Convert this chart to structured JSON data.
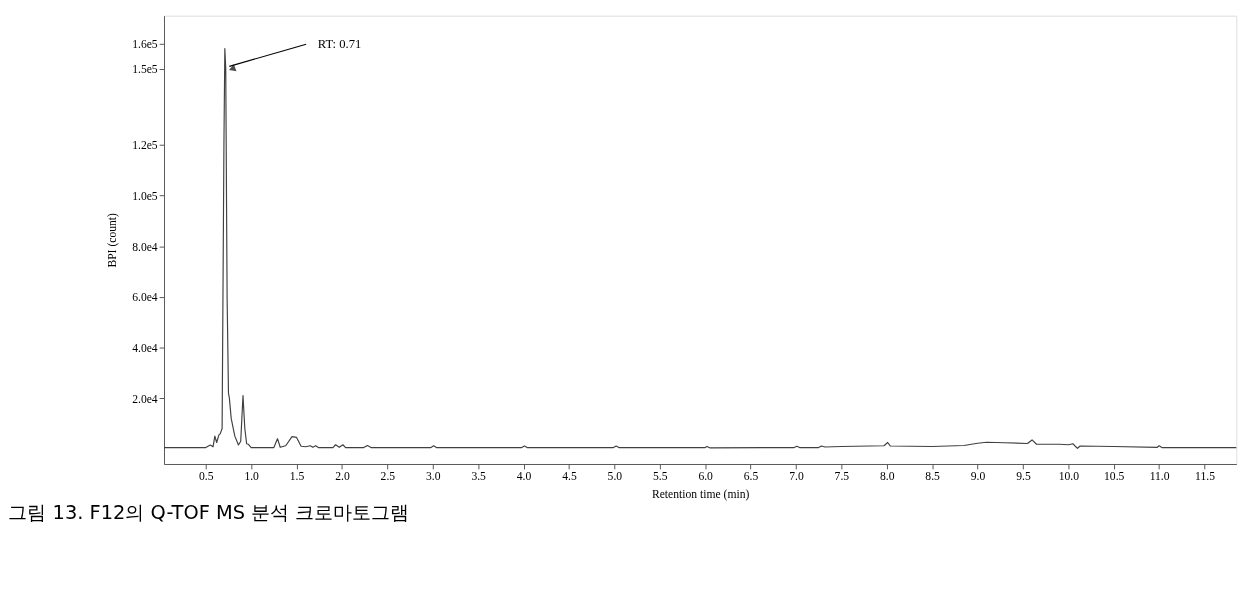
{
  "chart_data": {
    "type": "line",
    "xlabel": "Retention time (min)",
    "ylabel": "BPI (count)",
    "annotations": [
      {
        "text": "RT: 0.71",
        "x": 0.72,
        "y": 150000
      },
      "그림 13. F12의 Q-TOF MS 분석 크로마토그램"
    ],
    "series": [
      {
        "color": "#404040",
        "x": [
          0.04,
          0.5,
          0.55,
          0.58,
          0.6,
          0.62,
          0.645,
          0.66,
          0.68,
          0.7,
          0.71,
          0.72,
          0.735,
          0.75,
          0.76,
          0.78,
          0.82,
          0.86,
          0.885,
          0.91,
          0.93,
          0.95,
          0.97,
          1.0,
          1.25,
          1.29,
          1.32,
          1.38,
          1.45,
          1.5,
          1.55,
          1.6,
          1.65,
          1.68,
          1.71,
          1.74,
          1.9,
          1.93,
          1.97,
          2.01,
          2.04,
          2.24,
          2.28,
          2.32,
          2.98,
          3.01,
          3.04,
          3.98,
          4.01,
          4.04,
          4.99,
          5.02,
          5.05,
          6.0,
          6.02,
          6.05,
          6.98,
          7.01,
          7.04,
          7.25,
          7.28,
          7.32,
          7.5,
          7.97,
          8.01,
          8.04,
          8.5,
          8.85,
          9.0,
          9.1,
          9.3,
          9.55,
          9.6,
          9.65,
          9.9,
          10.0,
          10.05,
          10.08,
          10.1,
          10.13,
          10.5,
          10.98,
          11.0,
          11.03,
          11.85
        ],
        "values": [
          500,
          500,
          1500,
          800,
          5000,
          2500,
          5500,
          6000,
          8000,
          120000,
          158000,
          150000,
          60000,
          22000,
          20000,
          12000,
          5000,
          1500,
          3000,
          21000,
          8000,
          2000,
          1800,
          500,
          500,
          4000,
          600,
          1200,
          4800,
          4500,
          1000,
          800,
          1200,
          600,
          1200,
          500,
          500,
          1600,
          600,
          1600,
          500,
          500,
          1300,
          500,
          500,
          1200,
          500,
          500,
          1100,
          500,
          500,
          1100,
          500,
          500,
          900,
          400,
          500,
          1000,
          500,
          500,
          1100,
          700,
          900,
          1200,
          2500,
          1100,
          900,
          1300,
          2200,
          2600,
          2400,
          2100,
          3500,
          1800,
          1800,
          1600,
          2000,
          900,
          200,
          1100,
          900,
          600,
          1200,
          500,
          500
        ]
      }
    ],
    "xlim": [
      0.04,
      11.85
    ],
    "xticks": [
      {
        "value": 0.5,
        "label": "0.5"
      },
      {
        "value": 1,
        "label": "1.0"
      },
      {
        "value": 1.5,
        "label": "1.5"
      },
      {
        "value": 2,
        "label": "2.0"
      },
      {
        "value": 2.5,
        "label": "2.5"
      },
      {
        "value": 3,
        "label": "3.0"
      },
      {
        "value": 3.5,
        "label": "3.5"
      },
      {
        "value": 4,
        "label": "4.0"
      },
      {
        "value": 4.5,
        "label": "4.5"
      },
      {
        "value": 5,
        "label": "5.0"
      },
      {
        "value": 5.5,
        "label": "5.5"
      },
      {
        "value": 6,
        "label": "6.0"
      },
      {
        "value": 6.5,
        "label": "6.5"
      },
      {
        "value": 7,
        "label": "7.0"
      },
      {
        "value": 7.5,
        "label": "7.5"
      },
      {
        "value": 8,
        "label": "8.0"
      },
      {
        "value": 8.5,
        "label": "8.5"
      },
      {
        "value": 9,
        "label": "9.0"
      },
      {
        "value": 9.5,
        "label": "9.5"
      },
      {
        "value": 10,
        "label": "10.0"
      },
      {
        "value": 10.5,
        "label": "10.5"
      },
      {
        "value": 11,
        "label": "11.0"
      },
      {
        "value": 11.5,
        "label": "11.5"
      }
    ],
    "ylim": [
      -6000,
      171000
    ],
    "yticks": [
      {
        "value": 20000,
        "label": "2.0e4"
      },
      {
        "value": 40000,
        "label": "4.0e4"
      },
      {
        "value": 60000,
        "label": "6.0e4"
      },
      {
        "value": 80000,
        "label": "8.0e4"
      },
      {
        "value": 100000,
        "label": "1.0e5"
      },
      {
        "value": 120000,
        "label": "1.2e5"
      },
      {
        "value": 150000,
        "label": "1.5e5"
      },
      {
        "value": 160000,
        "label": "1.6e5"
      }
    ],
    "grid": false,
    "marker": "none",
    "line_style": "solid"
  }
}
